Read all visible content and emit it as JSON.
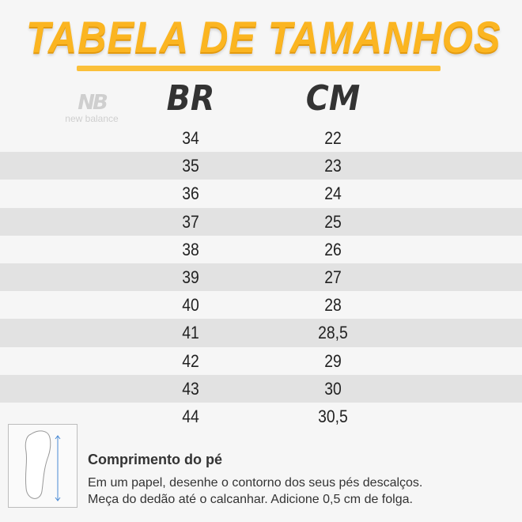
{
  "title": "TABELA DE TAMANHOS",
  "brand_logo": {
    "icon": "nb-logo",
    "text": "new balance"
  },
  "columns": [
    "BR",
    "CM"
  ],
  "rows": [
    [
      "34",
      "22"
    ],
    [
      "35",
      "23"
    ],
    [
      "36",
      "24"
    ],
    [
      "37",
      "25"
    ],
    [
      "38",
      "26"
    ],
    [
      "39",
      "27"
    ],
    [
      "40",
      "28"
    ],
    [
      "41",
      "28,5"
    ],
    [
      "42",
      "29"
    ],
    [
      "43",
      "30"
    ],
    [
      "44",
      "30,5"
    ]
  ],
  "info": {
    "icon": "foot-measure-icon",
    "title": "Comprimento do pé",
    "lines": [
      "Em um papel, desenhe o contorno dos seus pés descalços.",
      "Meça do dedão até o calcanhar. Adicione 0,5 cm de folga."
    ]
  },
  "colors": {
    "accent": "#fbb521",
    "stripe": "#e2e2e2",
    "background": "#f6f6f6"
  }
}
